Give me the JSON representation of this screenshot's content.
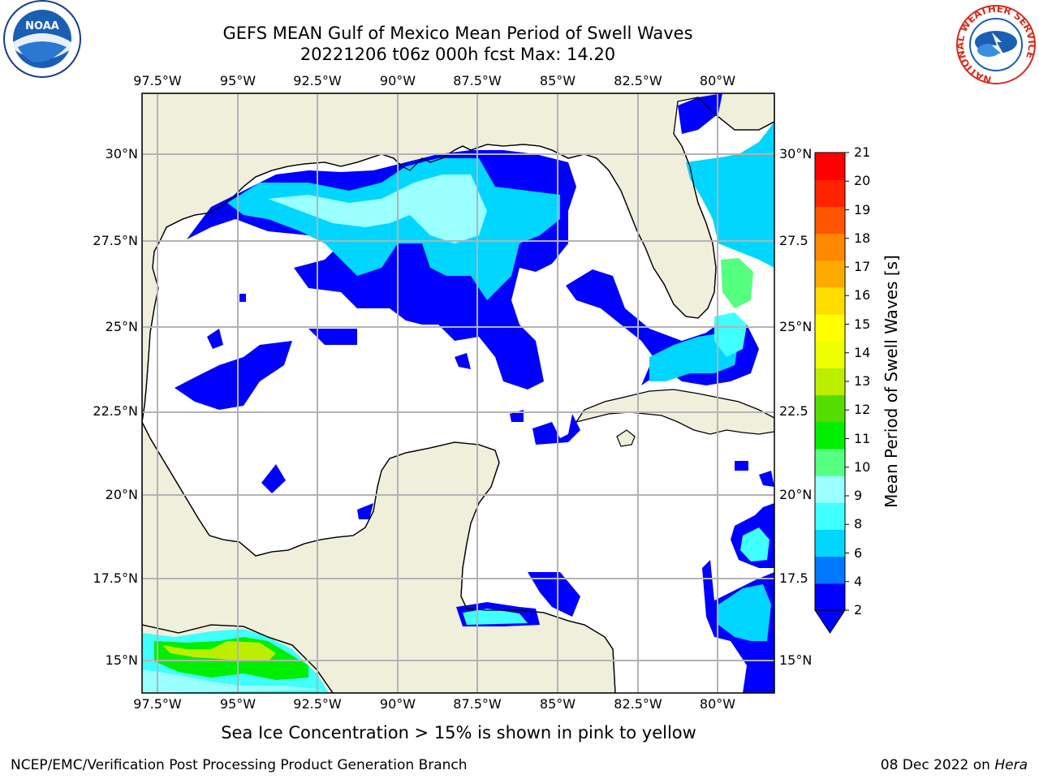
{
  "title_line1": "GEFS MEAN Gulf of Mexico Mean Period of Swell Waves",
  "title_line2": "20221206 t06z 000h fcst   Max: 14.20",
  "lon_ticks": [
    "97.5°W",
    "95°W",
    "92.5°W",
    "90°W",
    "87.5°W",
    "85°W",
    "82.5°W",
    "80°W"
  ],
  "lat_ticks_left": [
    "30°N",
    "27.5°N",
    "25°N",
    "22.5°N",
    "20°N",
    "17.5°N",
    "15°N"
  ],
  "lat_ticks_right": [
    "30°N",
    "27.5",
    "25°N",
    "22.5",
    "20°N",
    "17.5",
    "15°N"
  ],
  "colorbar": {
    "label": "Mean Period of Swell Waves [s]",
    "ticks": [
      "21",
      "20",
      "19",
      "18",
      "17",
      "16",
      "15",
      "14",
      "13",
      "12",
      "11",
      "10",
      "9",
      "8",
      "6",
      "4",
      "2"
    ],
    "colors": [
      "#0000ff",
      "#0077ff",
      "#00d6ff",
      "#3fffff",
      "#99ffff",
      "#55ff80",
      "#00ee00",
      "#55dd00",
      "#bbee00",
      "#eeff00",
      "#ffff00",
      "#ffdd00",
      "#ffaa00",
      "#ff8800",
      "#ff5500",
      "#ff2200",
      "#ff0000"
    ]
  },
  "map_colors": {
    "land": "#efefdc",
    "ocean": "#ffffff",
    "grid": "#b3b3b3",
    "coast": "#000000"
  },
  "logos": {
    "left": "NOAA",
    "right_ring": "NATIONAL WEATHER SERVICE"
  },
  "subtitle": "Sea Ice Concentration > 15% is shown in pink to yellow",
  "footer_left": "NCEP/EMC/Verification Post Processing Product Generation Branch",
  "footer_right_prefix": "08 Dec 2022 on ",
  "footer_right_host": "Hera"
}
